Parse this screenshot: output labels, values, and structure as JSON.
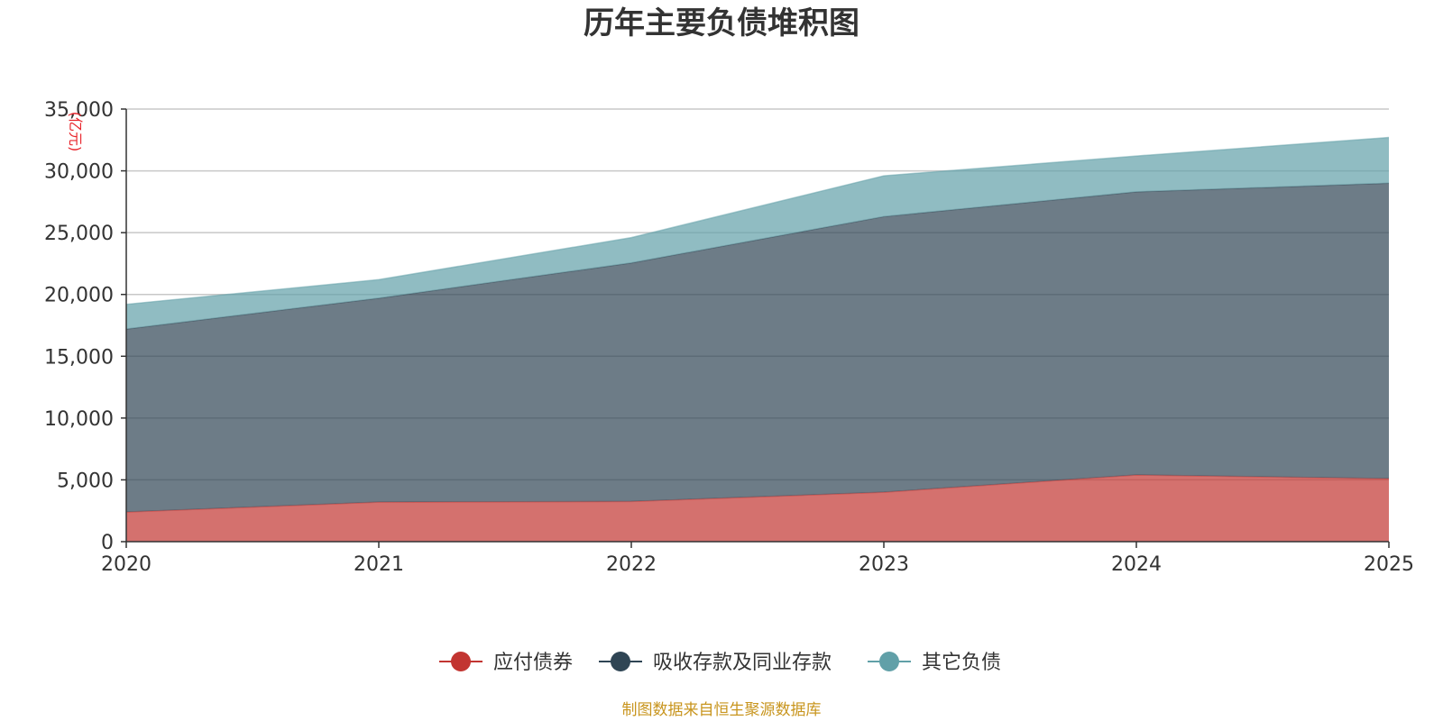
{
  "chart_data": {
    "type": "area",
    "stacked": true,
    "title": "历年主要负债堆积图",
    "unit_label": "(亿元)",
    "x": [
      "2020",
      "2021",
      "2022",
      "2023",
      "2024",
      "2025"
    ],
    "yticks": [
      "0",
      "5,000",
      "10,000",
      "15,000",
      "20,000",
      "25,000",
      "30,000",
      "35,000"
    ],
    "ylim": [
      0,
      35000
    ],
    "grid": true,
    "legend_position": "bottom-center",
    "series": [
      {
        "name": "应付债券",
        "color": "#c23531",
        "values": [
          2400,
          3200,
          3250,
          4000,
          5400,
          5100
        ]
      },
      {
        "name": "吸收存款及同业存款",
        "color": "#2f4554",
        "values": [
          14800,
          16500,
          19300,
          22300,
          22900,
          23900
        ]
      },
      {
        "name": "其它负债",
        "color": "#61a0a8",
        "values": [
          2000,
          1500,
          2050,
          3300,
          2900,
          3700
        ]
      }
    ],
    "source_note": "制图数据来自恒生聚源数据库"
  }
}
